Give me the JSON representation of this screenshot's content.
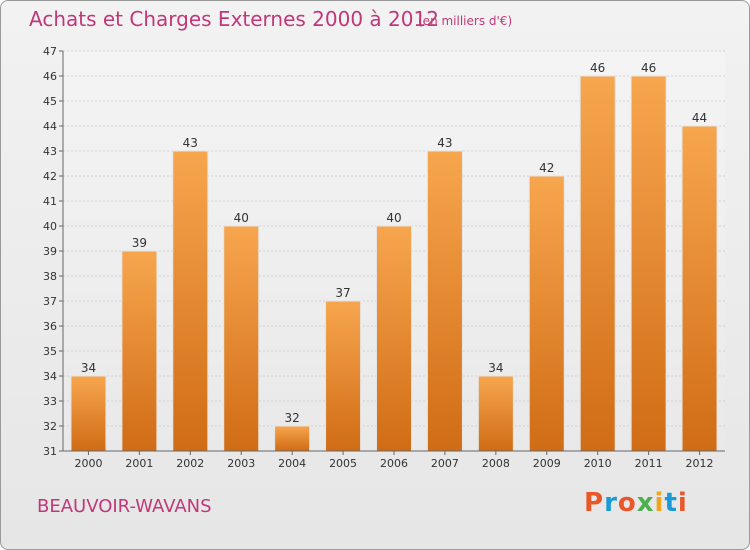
{
  "header": {
    "title": "Achats et Charges Externes 2000 à 2012",
    "subtitle": "(en milliers d'€)"
  },
  "footer": {
    "commune": "BEAUVOIR-WAVANS",
    "logo": "Proxiti"
  },
  "colors": {
    "title": "#c0387a",
    "bar_top": "#f7a64e",
    "bar_bottom": "#d06c15",
    "logo_letters": [
      "#e8572a",
      "#1a9ad6",
      "#e8572a",
      "#4caf50",
      "#f2a51a",
      "#1a9ad6",
      "#e8572a"
    ]
  },
  "chart_data": {
    "type": "bar",
    "title": "Achats et Charges Externes 2000 à 2012",
    "subtitle": "(en milliers d'€)",
    "xlabel": "",
    "ylabel": "",
    "categories": [
      "2000",
      "2001",
      "2002",
      "2003",
      "2004",
      "2005",
      "2006",
      "2007",
      "2008",
      "2009",
      "2010",
      "2011",
      "2012"
    ],
    "values": [
      34,
      39,
      43,
      40,
      32,
      37,
      40,
      43,
      34,
      42,
      46,
      46,
      44
    ],
    "ylim": [
      31,
      47
    ],
    "yticks": [
      31,
      32,
      33,
      34,
      35,
      36,
      37,
      38,
      39,
      40,
      41,
      42,
      43,
      44,
      45,
      46,
      47
    ],
    "grid": true,
    "data_labels": true
  }
}
